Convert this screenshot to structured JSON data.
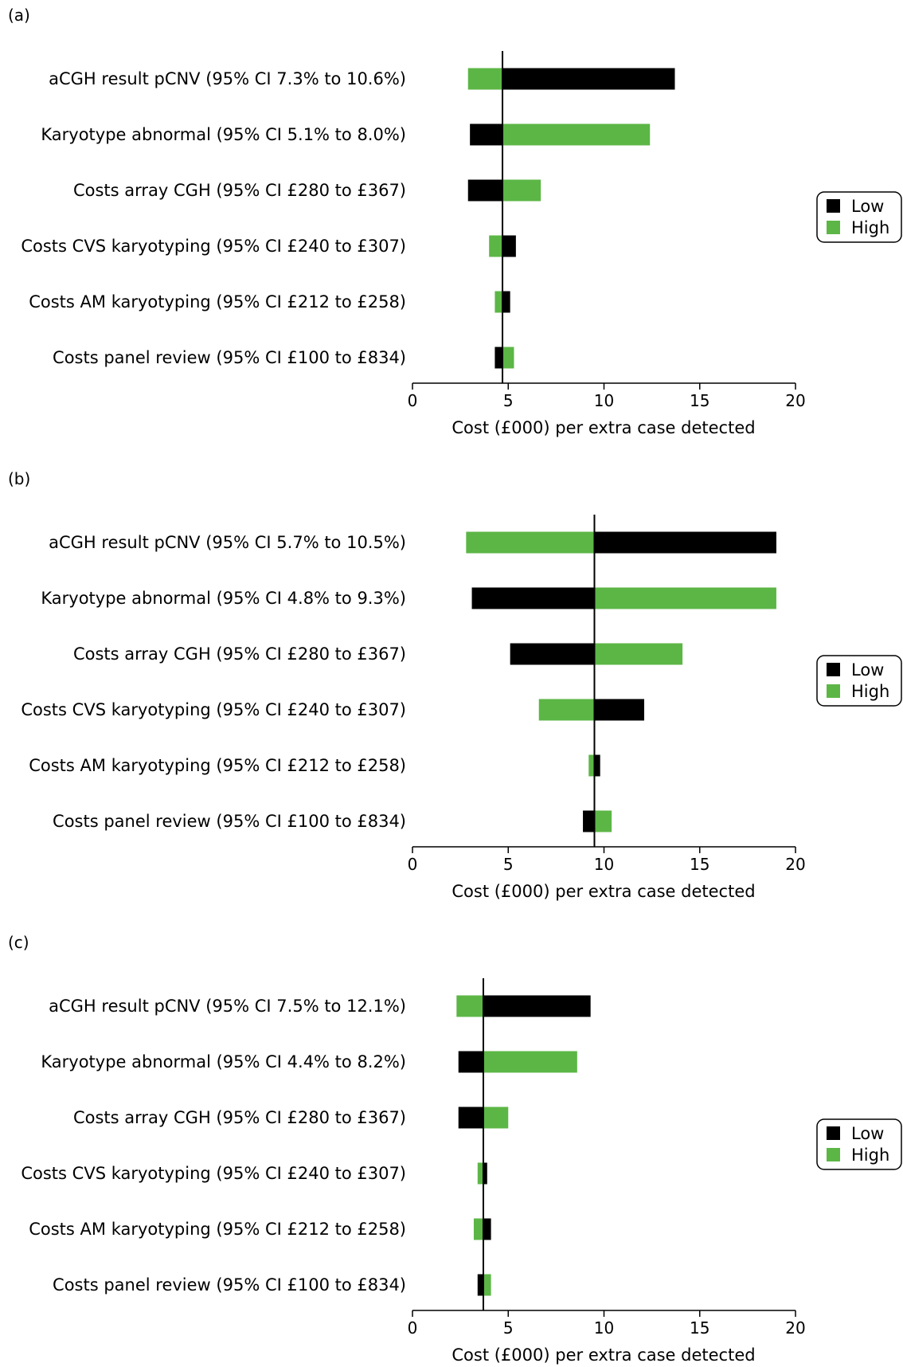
{
  "colors": {
    "low": "#000000",
    "high": "#5cb646"
  },
  "chart_data": [
    {
      "type": "bar",
      "subtype": "tornado",
      "panel_label": "(a)",
      "xlabel": "Cost (£000) per extra case detected",
      "xlim": [
        0,
        20
      ],
      "xticks": [
        "0",
        "5",
        "10",
        "15",
        "20"
      ],
      "baseline": 4.7,
      "legend": [
        "Low",
        "High"
      ],
      "legend_position": "right",
      "categories": [
        "aCGH result pCNV (95% CI 7.3% to 10.6%)",
        "Karyotype abnormal (95% CI 5.1% to 8.0%)",
        "Costs array CGH (95% CI £280 to £367)",
        "Costs CVS karyotyping (95% CI £240 to £307)",
        "Costs AM karyotyping (95% CI £212 to £258)",
        "Costs panel review (95% CI £100 to £834)"
      ],
      "series": [
        {
          "name": "Low",
          "values": [
            13.7,
            3.0,
            2.9,
            5.4,
            5.1,
            4.3
          ]
        },
        {
          "name": "High",
          "values": [
            2.9,
            12.4,
            6.7,
            4.0,
            4.3,
            5.3
          ]
        }
      ]
    },
    {
      "type": "bar",
      "subtype": "tornado",
      "panel_label": "(b)",
      "xlabel": "Cost (£000) per extra case detected",
      "xlim": [
        0,
        20
      ],
      "xticks": [
        "0",
        "5",
        "10",
        "15",
        "20"
      ],
      "baseline": 9.5,
      "legend": [
        "Low",
        "High"
      ],
      "legend_position": "right",
      "categories": [
        "aCGH result pCNV (95% CI 5.7% to 10.5%)",
        "Karyotype abnormal (95% CI 4.8% to 9.3%)",
        "Costs array CGH (95% CI £280 to £367)",
        "Costs CVS karyotyping (95% CI £240 to £307)",
        "Costs AM karyotyping (95% CI £212 to £258)",
        "Costs panel review (95% CI £100 to £834)"
      ],
      "series": [
        {
          "name": "Low",
          "values": [
            19.0,
            3.1,
            5.1,
            12.1,
            9.8,
            8.9
          ]
        },
        {
          "name": "High",
          "values": [
            2.8,
            19.0,
            14.1,
            6.6,
            9.2,
            10.4
          ]
        }
      ]
    },
    {
      "type": "bar",
      "subtype": "tornado",
      "panel_label": "(c)",
      "xlabel": "Cost (£000) per extra case detected",
      "xlim": [
        0,
        20
      ],
      "xticks": [
        "0",
        "5",
        "10",
        "15",
        "20"
      ],
      "baseline": 3.7,
      "legend": [
        "Low",
        "High"
      ],
      "legend_position": "right",
      "categories": [
        "aCGH result pCNV (95% CI 7.5% to 12.1%)",
        "Karyotype abnormal (95% CI 4.4% to 8.2%)",
        "Costs array CGH (95% CI £280 to £367)",
        "Costs CVS karyotyping (95% CI £240 to £307)",
        "Costs AM karyotyping (95% CI £212 to £258)",
        "Costs panel review (95% CI £100 to £834)"
      ],
      "series": [
        {
          "name": "Low",
          "values": [
            9.3,
            2.4,
            2.4,
            3.9,
            4.1,
            3.4
          ]
        },
        {
          "name": "High",
          "values": [
            2.3,
            8.6,
            5.0,
            3.4,
            3.2,
            4.1
          ]
        }
      ]
    }
  ]
}
